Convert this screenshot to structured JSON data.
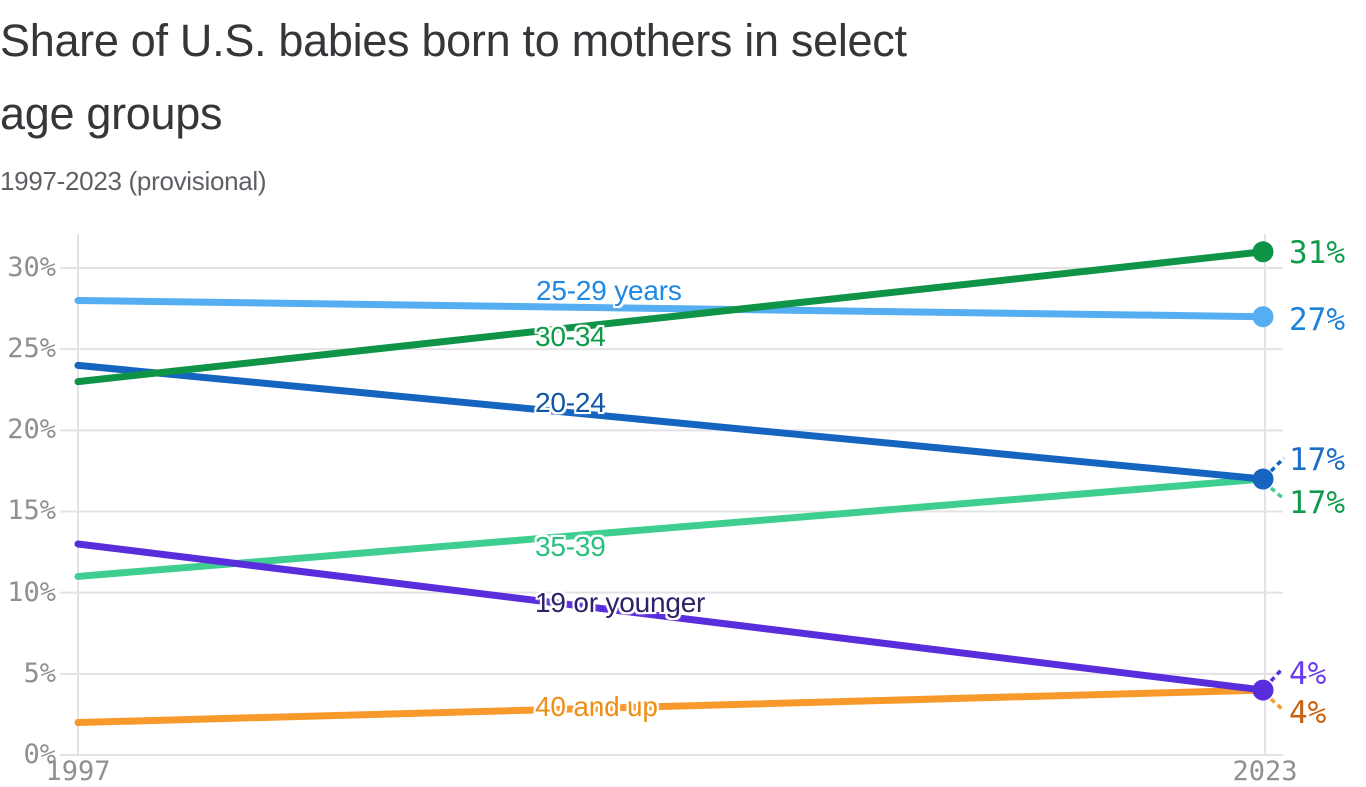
{
  "header": {
    "title": "Share of U.S. babies born to mothers in select age groups",
    "title_line1": "Share of U.S. babies born to mothers in select",
    "title_line2": "age groups",
    "subtitle": "1997-2023 (provisional)"
  },
  "chart_data": {
    "type": "line",
    "title": "Share of U.S. babies born to mothers in select age groups",
    "subtitle": "1997-2023 (provisional)",
    "x": [
      1997,
      2023
    ],
    "x_tick_labels": [
      "1997",
      "2023"
    ],
    "y_ticks": [
      0,
      5,
      10,
      15,
      20,
      25,
      30
    ],
    "y_tick_labels": [
      "0%",
      "5%",
      "10%",
      "15%",
      "20%",
      "25%",
      "30%"
    ],
    "ylim": [
      0,
      30
    ],
    "xlim": [
      1997,
      2023
    ],
    "grid": true,
    "legend_position": "inline-labels",
    "colors": {
      "grid": "#e3e3e6",
      "tick_text": "#8f8f94",
      "title_text": "#35353a",
      "subtitle_text": "#5f5f66"
    },
    "series": [
      {
        "name": "35-39 years",
        "label": "35-39",
        "values": [
          11,
          17
        ],
        "end_label": "17%",
        "line_color": "#3ecf90",
        "label_color": "#29c07e",
        "end_label_color": "#12994c",
        "dot": false
      },
      {
        "name": "40 and up",
        "label": "40 and up",
        "values": [
          2,
          4
        ],
        "end_label": "4%",
        "line_color": "#f8992c",
        "label_color": "#ef8d15",
        "end_label_color": "#c8600e",
        "dot": false
      },
      {
        "name": "25-29 years",
        "label": "25-29 years",
        "values": [
          28,
          27
        ],
        "end_label": "27%",
        "line_color": "#55aef2",
        "label_color": "#1e88e5",
        "end_label_color": "#1d83da",
        "dot": true
      },
      {
        "name": "19 or younger",
        "label": "19 or younger",
        "values": [
          13,
          4
        ],
        "end_label": "4%",
        "line_color": "#5a2ddc",
        "label_color": "#2d2266",
        "end_label_color": "#6b3bef",
        "dot": true
      },
      {
        "name": "20-24 years",
        "label": "20-24",
        "values": [
          24,
          17
        ],
        "end_label": "17%",
        "line_color": "#1565c0",
        "label_color": "#0e56a5",
        "end_label_color": "#1c6fc4",
        "dot": true
      },
      {
        "name": "30-34 years",
        "label": "30-34",
        "values": [
          23,
          31
        ],
        "end_label": "31%",
        "line_color": "#0e9347",
        "label_color": "#0d9b47",
        "end_label_color": "#129b4b",
        "dot": true
      }
    ]
  }
}
